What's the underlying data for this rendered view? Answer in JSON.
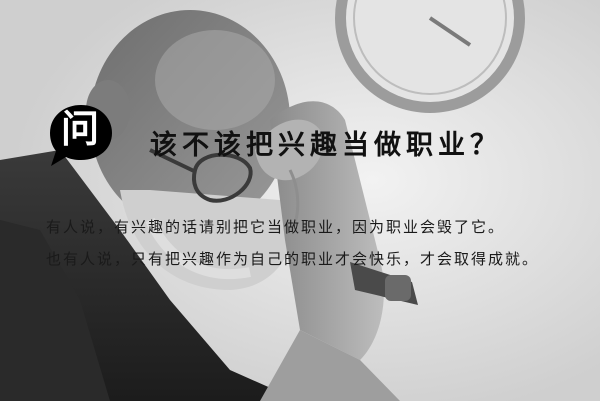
{
  "badge": {
    "glyph": "问"
  },
  "headline": {
    "text": "该不该把兴趣当做职业？"
  },
  "body": {
    "lines": [
      "有人说，有兴趣的话请别把它当做职业，因为职业会毁了它。",
      "也有人说，只有把兴趣作为自己的职业才会快乐，才会取得成就。"
    ]
  },
  "colors": {
    "badge_fill": "#000000",
    "headline": "#111111",
    "body_text": "#1a1a1a",
    "background": "#e0e0e0"
  }
}
